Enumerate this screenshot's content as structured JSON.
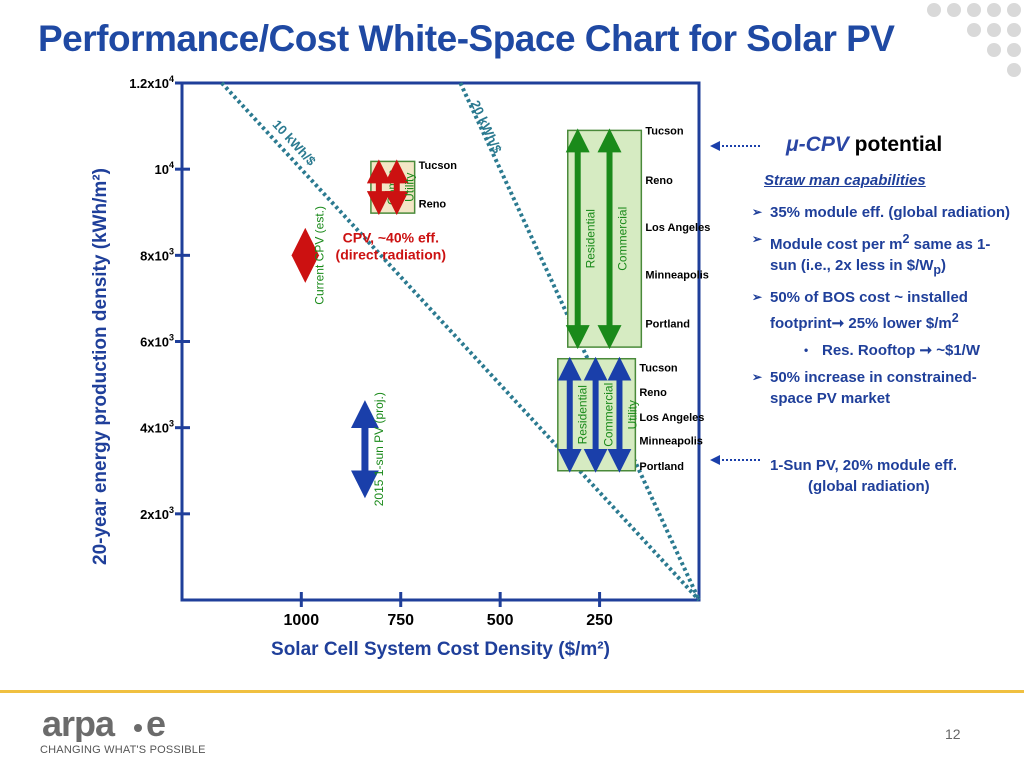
{
  "slide": {
    "title": "Performance/Cost White-Space Chart for Solar PV",
    "page_number": "12",
    "tagline": "CHANGING WHAT'S POSSIBLE",
    "logo_text": "arpa-e"
  },
  "right_panel": {
    "cpv_title_mu": "μ-CPV",
    "cpv_title_rest": " potential",
    "straw_man": "Straw man capabilities",
    "bullets": [
      {
        "html": "35% module eff. (global radiation)"
      },
      {
        "html": "Module cost per m<sup>2</sup> same as 1-sun (i.e., 2x less in $/W<sub>p</sub>)"
      },
      {
        "html": "50% of BOS cost ~ installed footprint&#x279E; 25% lower $/m<sup>2</sup>"
      },
      {
        "html": "Res. Rooftop &#x279E; ~$1/W",
        "sub": true
      },
      {
        "html": "50% increase in constrained-space PV market"
      }
    ],
    "onesun_line1": "1-Sun PV, 20% module eff.",
    "onesun_line2": "(global radiation)"
  },
  "chart_data": {
    "type": "scatter",
    "title": "",
    "xlabel": "Solar Cell System Cost Density ($/m²)",
    "ylabel": "20-year energy production density (kWh/m²)",
    "x_reversed": true,
    "xlim": [
      1300,
      0
    ],
    "ylim": [
      0,
      12000
    ],
    "x_ticks": [
      {
        "value": 1000,
        "label": "1000"
      },
      {
        "value": 750,
        "label": "750"
      },
      {
        "value": 500,
        "label": "500"
      },
      {
        "value": 250,
        "label": "250"
      }
    ],
    "y_ticks": [
      {
        "value": 2000,
        "label": "2x10",
        "sup": "3"
      },
      {
        "value": 4000,
        "label": "4x10",
        "sup": "3"
      },
      {
        "value": 6000,
        "label": "6x10",
        "sup": "3"
      },
      {
        "value": 8000,
        "label": "8x10",
        "sup": "3"
      },
      {
        "value": 10000,
        "label": "10",
        "sup": "4"
      },
      {
        "value": 12000,
        "label": "1.2x10",
        "sup": "4"
      }
    ],
    "iso_lines": [
      {
        "name": "10 kWh/$",
        "slope": 10
      },
      {
        "name": "20 kWh/$",
        "slope": 20
      }
    ],
    "ranges": [
      {
        "name": "Current CPV (est.)",
        "x": 990,
        "y_low": 7500,
        "y_high": 8500,
        "color": "#cc1111"
      },
      {
        "name": "2015 1-sun PV (proj.)",
        "x": 840,
        "y_low": 2500,
        "y_high": 4500,
        "color": "#1a3faa"
      }
    ],
    "cpv_box": {
      "label": "CPV, ~40% eff.",
      "label2": "(direct radiation)",
      "x_range": [
        825,
        715
      ],
      "y_range": [
        8980,
        10180
      ],
      "columns": [
        {
          "name": "Comm",
          "x": 805
        },
        {
          "name": "Utility",
          "x": 760
        }
      ],
      "cities": [
        {
          "name": "Tucson",
          "y": 10100
        },
        {
          "name": "Reno",
          "y": 9200
        }
      ],
      "fill": "#f3e6c6",
      "arrow_color": "#cc1111"
    },
    "micro_cpv_box": {
      "x_range": [
        330,
        145
      ],
      "y_range": [
        5870,
        10900
      ],
      "columns": [
        {
          "name": "Residential",
          "x": 305
        },
        {
          "name": "Commercial",
          "x": 225
        }
      ],
      "cities": [
        {
          "name": "Tucson",
          "y": 10900
        },
        {
          "name": "Reno",
          "y": 9750
        },
        {
          "name": "Los Angeles",
          "y": 8660
        },
        {
          "name": "Minneapolis",
          "y": 7560
        },
        {
          "name": "Portland",
          "y": 6420
        }
      ],
      "fill": "#d6ebc2",
      "arrow_color": "#1a8a1a"
    },
    "onesun_box": {
      "x_range": [
        355,
        160
      ],
      "y_range": [
        3000,
        5600
      ],
      "columns": [
        {
          "name": "Residential",
          "x": 325
        },
        {
          "name": "Commercial",
          "x": 260
        },
        {
          "name": "Utility",
          "x": 200
        }
      ],
      "cities": [
        {
          "name": "Tucson",
          "y": 5400
        },
        {
          "name": "Reno",
          "y": 4830
        },
        {
          "name": "Los Angeles",
          "y": 4250
        },
        {
          "name": "Minneapolis",
          "y": 3700
        },
        {
          "name": "Portland",
          "y": 3110
        }
      ],
      "fill": "#d6ebc2",
      "arrow_color": "#1a3faa"
    }
  },
  "colors": {
    "title": "#1f49a3",
    "axis": "#1f3f9a",
    "iso_line": "#2b7a90",
    "accent": "#f0c040"
  }
}
